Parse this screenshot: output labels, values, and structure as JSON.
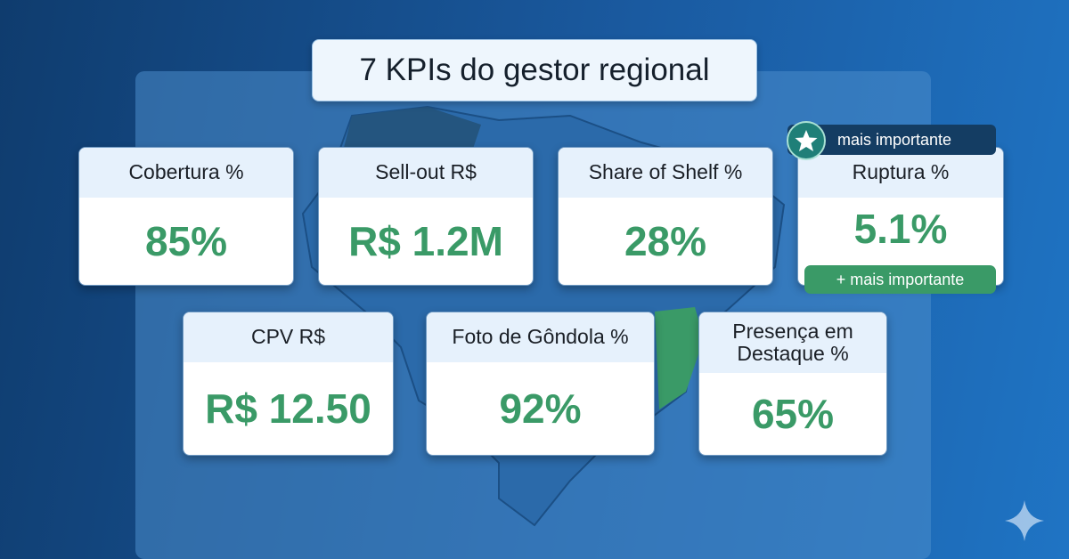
{
  "title": "7 KPIs do gestor regional",
  "badge": "mais importante",
  "tag": "+ mais importante",
  "cards": [
    {
      "label": "Cobertura %",
      "value": "85%"
    },
    {
      "label": "Sell-out R$",
      "value": "R$ 1.2M"
    },
    {
      "label": "Share of Shelf %",
      "value": "28%"
    },
    {
      "label": "Ruptura %",
      "value": "5.1%"
    },
    {
      "label": "CPV R$",
      "value": "R$ 12.50"
    },
    {
      "label": "Foto de Gôndola %",
      "value": "92%"
    },
    {
      "label": "Presença em Destaque %",
      "value": "65%"
    }
  ]
}
